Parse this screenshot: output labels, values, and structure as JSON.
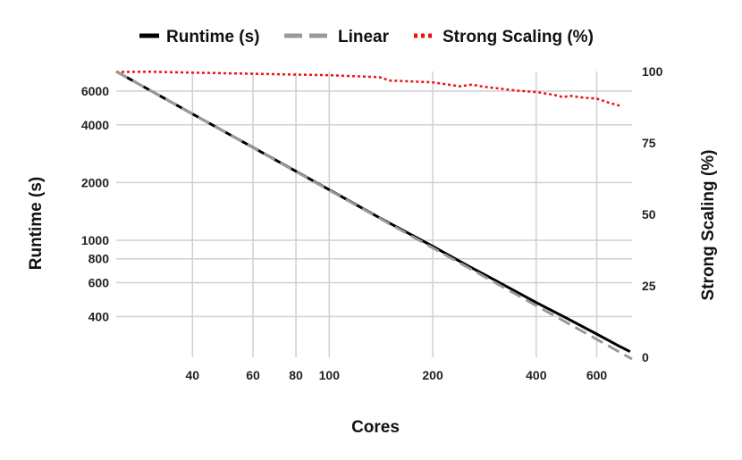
{
  "chart_data": {
    "type": "line",
    "xscale": "log",
    "xlabel": "Cores",
    "ylabel": "Runtime (s)",
    "ylabel_right": "Strong Scaling (%)",
    "xlim": [
      24,
      760
    ],
    "ylim": [
      245,
      7600
    ],
    "ylim_right": [
      0,
      100
    ],
    "legend_position": "top-center",
    "grid": true,
    "x_ticks": [
      40,
      60,
      80,
      100,
      200,
      400,
      600
    ],
    "y_ticks": [
      400,
      600,
      800,
      1000,
      2000,
      4000,
      6000
    ],
    "y_ticks_right": [
      0,
      25,
      50,
      75,
      100
    ],
    "colors": {
      "runtime": "#000000",
      "linear": "#999999",
      "scaling": "#ee1111",
      "grid": "#d0d0d0"
    },
    "series": [
      {
        "name": "Runtime (s)",
        "key": "runtime",
        "axis": "left",
        "style": "solid",
        "x": [
          24,
          40,
          60,
          80,
          100,
          140,
          200,
          250,
          300,
          400,
          500,
          600,
          700,
          750
        ],
        "y": [
          7600,
          4560,
          3050,
          2290,
          1835,
          1310,
          930,
          745,
          625,
          473,
          385,
          324,
          279,
          262
        ]
      },
      {
        "name": "Linear",
        "key": "linear",
        "axis": "left",
        "style": "dashed",
        "x": [
          24,
          760
        ],
        "y": [
          7600,
          240
        ]
      },
      {
        "name": "Strong Scaling (%)",
        "key": "scaling",
        "axis": "right",
        "style": "dotted",
        "x": [
          24,
          30,
          40,
          60,
          80,
          100,
          140,
          150,
          200,
          240,
          260,
          280,
          350,
          400,
          450,
          480,
          500,
          550,
          600,
          650,
          700
        ],
        "y": [
          99.8,
          99.9,
          99.6,
          99.2,
          98.9,
          98.7,
          98.0,
          96.8,
          96.2,
          94.8,
          95.4,
          94.7,
          93.3,
          92.8,
          91.8,
          91.0,
          91.5,
          90.8,
          90.5,
          89.1,
          88.0
        ]
      }
    ]
  }
}
